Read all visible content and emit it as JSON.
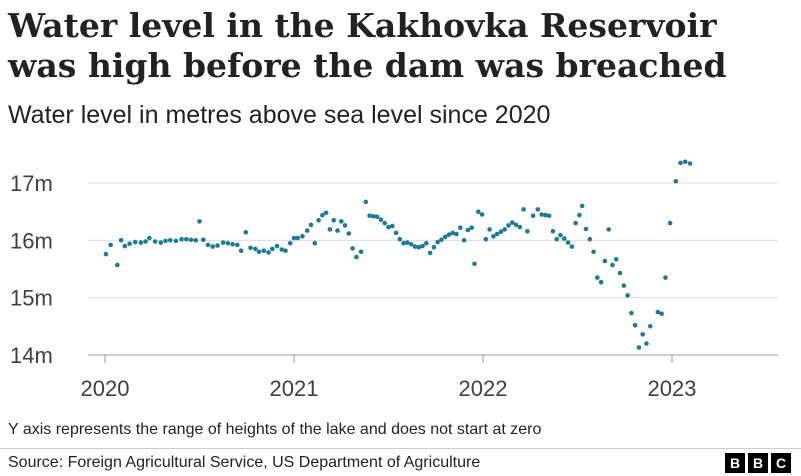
{
  "chart_data": {
    "type": "scatter",
    "title": "Water level in the Kakhovka Reservoir was high before the dam was breached",
    "subtitle": "Water level in metres above sea level since 2020",
    "xlabel": "",
    "ylabel": "",
    "ylim": [
      14,
      17
    ],
    "xlim": [
      2019.85,
      2023.52
    ],
    "y_ticks": [
      {
        "value": 17,
        "label": "17m"
      },
      {
        "value": 16,
        "label": "16m"
      },
      {
        "value": 15,
        "label": "15m"
      },
      {
        "value": 14,
        "label": "14m"
      }
    ],
    "x_ticks": [
      {
        "value": 2020,
        "label": "2020"
      },
      {
        "value": 2021,
        "label": "2021"
      },
      {
        "value": 2022,
        "label": "2022"
      },
      {
        "value": 2023,
        "label": "2023"
      }
    ],
    "grid": true,
    "series": [
      {
        "name": "Water level",
        "color": "#1b7a96",
        "points": [
          [
            2020.005,
            15.76
          ],
          [
            2020.03,
            15.92
          ],
          [
            2020.065,
            15.57
          ],
          [
            2020.085,
            16.0
          ],
          [
            2020.105,
            15.9
          ],
          [
            2020.13,
            15.94
          ],
          [
            2020.16,
            15.97
          ],
          [
            2020.19,
            15.96
          ],
          [
            2020.215,
            15.98
          ],
          [
            2020.235,
            16.04
          ],
          [
            2020.265,
            15.98
          ],
          [
            2020.295,
            15.96
          ],
          [
            2020.32,
            15.99
          ],
          [
            2020.345,
            16.0
          ],
          [
            2020.375,
            15.99
          ],
          [
            2020.405,
            16.02
          ],
          [
            2020.43,
            16.02
          ],
          [
            2020.455,
            16.01
          ],
          [
            2020.48,
            16.0
          ],
          [
            2020.5,
            16.33
          ],
          [
            2020.52,
            16.01
          ],
          [
            2020.545,
            15.92
          ],
          [
            2020.57,
            15.89
          ],
          [
            2020.595,
            15.91
          ],
          [
            2020.625,
            15.96
          ],
          [
            2020.65,
            15.95
          ],
          [
            2020.675,
            15.93
          ],
          [
            2020.7,
            15.92
          ],
          [
            2020.72,
            15.82
          ],
          [
            2020.745,
            16.14
          ],
          [
            2020.77,
            15.87
          ],
          [
            2020.795,
            15.85
          ],
          [
            2020.815,
            15.8
          ],
          [
            2020.84,
            15.82
          ],
          [
            2020.865,
            15.79
          ],
          [
            2020.885,
            15.85
          ],
          [
            2020.91,
            15.9
          ],
          [
            2020.935,
            15.84
          ],
          [
            2020.955,
            15.82
          ],
          [
            2020.98,
            15.95
          ],
          [
            2021.0,
            16.04
          ],
          [
            2021.02,
            16.04
          ],
          [
            2021.045,
            16.07
          ],
          [
            2021.07,
            16.17
          ],
          [
            2021.09,
            16.27
          ],
          [
            2021.11,
            15.95
          ],
          [
            2021.13,
            16.35
          ],
          [
            2021.15,
            16.44
          ],
          [
            2021.17,
            16.48
          ],
          [
            2021.19,
            16.19
          ],
          [
            2021.21,
            16.35
          ],
          [
            2021.23,
            16.17
          ],
          [
            2021.25,
            16.33
          ],
          [
            2021.27,
            16.26
          ],
          [
            2021.29,
            16.12
          ],
          [
            2021.31,
            15.86
          ],
          [
            2021.33,
            15.71
          ],
          [
            2021.355,
            15.8
          ],
          [
            2021.38,
            16.67
          ],
          [
            2021.4,
            16.43
          ],
          [
            2021.42,
            16.42
          ],
          [
            2021.44,
            16.41
          ],
          [
            2021.46,
            16.36
          ],
          [
            2021.48,
            16.3
          ],
          [
            2021.5,
            16.23
          ],
          [
            2021.52,
            16.25
          ],
          [
            2021.54,
            16.13
          ],
          [
            2021.56,
            16.02
          ],
          [
            2021.58,
            15.95
          ],
          [
            2021.6,
            15.96
          ],
          [
            2021.62,
            15.93
          ],
          [
            2021.64,
            15.89
          ],
          [
            2021.66,
            15.88
          ],
          [
            2021.68,
            15.9
          ],
          [
            2021.7,
            15.95
          ],
          [
            2021.72,
            15.78
          ],
          [
            2021.74,
            15.88
          ],
          [
            2021.76,
            15.97
          ],
          [
            2021.78,
            16.01
          ],
          [
            2021.8,
            16.06
          ],
          [
            2021.82,
            16.1
          ],
          [
            2021.84,
            16.13
          ],
          [
            2021.86,
            16.11
          ],
          [
            2021.88,
            16.22
          ],
          [
            2021.9,
            16.0
          ],
          [
            2021.92,
            16.18
          ],
          [
            2021.94,
            16.22
          ],
          [
            2021.955,
            15.59
          ],
          [
            2021.975,
            16.5
          ],
          [
            2021.995,
            16.45
          ],
          [
            2022.015,
            16.02
          ],
          [
            2022.035,
            16.19
          ],
          [
            2022.055,
            16.07
          ],
          [
            2022.075,
            16.11
          ],
          [
            2022.095,
            16.15
          ],
          [
            2022.115,
            16.19
          ],
          [
            2022.135,
            16.26
          ],
          [
            2022.155,
            16.31
          ],
          [
            2022.175,
            16.27
          ],
          [
            2022.195,
            16.23
          ],
          [
            2022.215,
            16.54
          ],
          [
            2022.235,
            16.16
          ],
          [
            2022.265,
            16.43
          ],
          [
            2022.29,
            16.54
          ],
          [
            2022.31,
            16.45
          ],
          [
            2022.33,
            16.44
          ],
          [
            2022.35,
            16.43
          ],
          [
            2022.37,
            16.16
          ],
          [
            2022.39,
            16.02
          ],
          [
            2022.41,
            16.09
          ],
          [
            2022.43,
            16.03
          ],
          [
            2022.45,
            15.96
          ],
          [
            2022.47,
            15.89
          ],
          [
            2022.49,
            16.3
          ],
          [
            2022.51,
            16.44
          ],
          [
            2022.525,
            16.6
          ],
          [
            2022.545,
            16.2
          ],
          [
            2022.565,
            16.02
          ],
          [
            2022.585,
            15.8
          ],
          [
            2022.605,
            15.35
          ],
          [
            2022.625,
            15.27
          ],
          [
            2022.645,
            15.64
          ],
          [
            2022.665,
            16.19
          ],
          [
            2022.685,
            15.57
          ],
          [
            2022.705,
            15.67
          ],
          [
            2022.725,
            15.43
          ],
          [
            2022.745,
            15.21
          ],
          [
            2022.765,
            15.04
          ],
          [
            2022.785,
            14.73
          ],
          [
            2022.805,
            14.52
          ],
          [
            2022.825,
            14.13
          ],
          [
            2022.845,
            14.36
          ],
          [
            2022.865,
            14.2
          ],
          [
            2022.885,
            14.5
          ],
          [
            2022.925,
            14.75
          ],
          [
            2022.945,
            14.72
          ],
          [
            2022.965,
            15.35
          ],
          [
            2022.99,
            16.3
          ],
          [
            2023.02,
            17.03
          ],
          [
            2023.045,
            17.35
          ],
          [
            2023.07,
            17.37
          ],
          [
            2023.095,
            17.34
          ]
        ]
      }
    ],
    "footnote": "Y axis represents the range of heights of the lake and does not start at zero",
    "source": "Source: Foreign Agricultural Service, US Department of Agriculture",
    "logo_text": [
      "B",
      "B",
      "C"
    ]
  }
}
